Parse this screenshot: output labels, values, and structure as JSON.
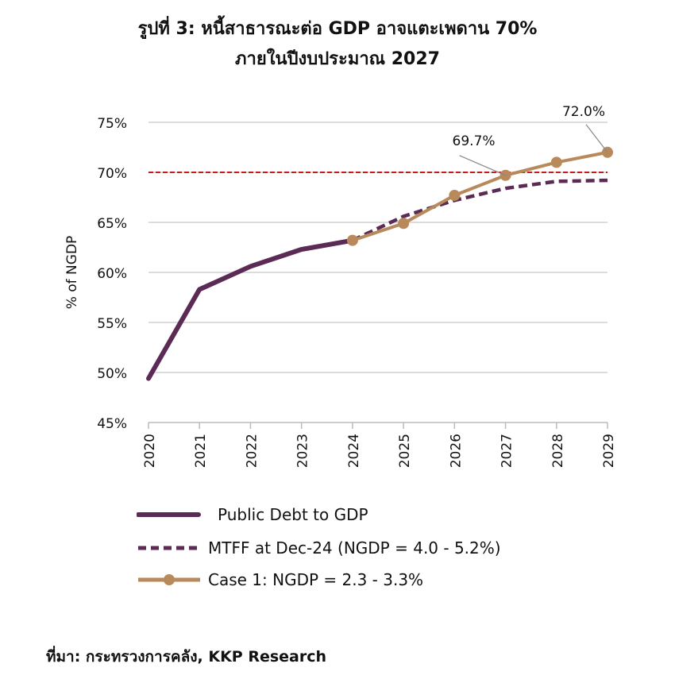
{
  "title_lines": [
    "รูปที่ 3: หนี้สาธารณะต่อ GDP อาจแตะเพดาน 70%",
    "ภายในปีงบประมาณ 2027"
  ],
  "source": "ที่มา: กระทรวงการคลัง, KKP Research",
  "chart_data": {
    "type": "line",
    "ylabel": "% of NGDP",
    "ylim": [
      45,
      75
    ],
    "yticks": [
      "45%",
      "50%",
      "55%",
      "60%",
      "65%",
      "70%",
      "75%"
    ],
    "ytick_values": [
      45,
      50,
      55,
      60,
      65,
      70,
      75
    ],
    "x": [
      "2020",
      "2021",
      "2022",
      "2023",
      "2024",
      "2025",
      "2026",
      "2027",
      "2028",
      "2029"
    ],
    "grid": "horizontal",
    "reference_line": {
      "value": 70,
      "color": "#c00000",
      "style": "dashed"
    },
    "series": [
      {
        "name": "Public Debt to GDP",
        "color": "#5b2a55",
        "style": "solid",
        "values": [
          49.4,
          58.3,
          60.6,
          62.3,
          63.2,
          null,
          null,
          null,
          null,
          null
        ]
      },
      {
        "name": "MTFF at Dec-24 (NGDP = 4.0 - 5.2%)",
        "color": "#5b2a55",
        "style": "dashed",
        "values": [
          null,
          null,
          null,
          null,
          63.2,
          65.6,
          67.2,
          68.4,
          69.1,
          69.2
        ]
      },
      {
        "name": "Case 1: NGDP = 2.3 - 3.3%",
        "color": "#b8895a",
        "style": "solid-markers",
        "values": [
          null,
          null,
          null,
          null,
          63.2,
          64.9,
          67.7,
          69.7,
          71.0,
          72.0
        ]
      }
    ],
    "annotations": [
      {
        "x": "2027",
        "series": 2,
        "text": "69.7%"
      },
      {
        "x": "2029",
        "series": 2,
        "text": "72.0%"
      }
    ],
    "legend_placement": "bottom"
  }
}
